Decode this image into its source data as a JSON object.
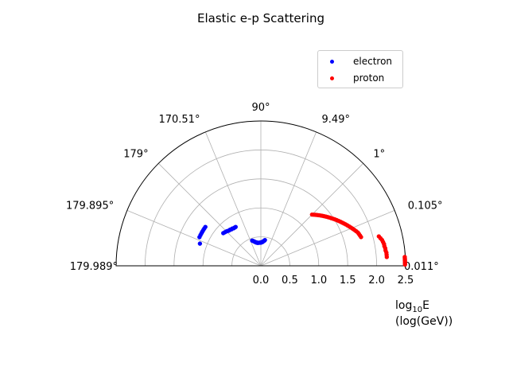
{
  "chart_data": {
    "type": "scatter",
    "projection": "polar-half",
    "title": "Elastic e-p Scattering",
    "radial_label_main": "log",
    "radial_label_sub": "10",
    "radial_label_rest": "E",
    "radial_label_line2": "(log(GeV))",
    "rlim": [
      0,
      2.5
    ],
    "radial_ticks": [
      "0.0",
      "0.5",
      "1.0",
      "1.5",
      "2.0",
      "2.5"
    ],
    "angular_ticks": [
      {
        "theta_deg": 0,
        "label": "0.011°"
      },
      {
        "theta_deg": 22.5,
        "label": "0.105°"
      },
      {
        "theta_deg": 45,
        "label": "1°"
      },
      {
        "theta_deg": 67.5,
        "label": "9.49°"
      },
      {
        "theta_deg": 90,
        "label": "90°"
      },
      {
        "theta_deg": 112.5,
        "label": "170.51°"
      },
      {
        "theta_deg": 135,
        "label": "179°"
      },
      {
        "theta_deg": 157.5,
        "label": "179.895°"
      },
      {
        "theta_deg": 180,
        "label": "179.989°"
      }
    ],
    "grid": true,
    "legend_position": "top-right",
    "series": [
      {
        "name": "electron",
        "color": "#0000ff",
        "points": [
          {
            "theta_deg": 81,
            "r": 0.45
          },
          {
            "theta_deg": 82,
            "r": 0.44
          },
          {
            "theta_deg": 83.5,
            "r": 0.43
          },
          {
            "theta_deg": 85,
            "r": 0.42
          },
          {
            "theta_deg": 86.5,
            "r": 0.41
          },
          {
            "theta_deg": 88,
            "r": 0.41
          },
          {
            "theta_deg": 89.5,
            "r": 0.4
          },
          {
            "theta_deg": 91,
            "r": 0.4
          },
          {
            "theta_deg": 92.5,
            "r": 0.4
          },
          {
            "theta_deg": 94,
            "r": 0.4
          },
          {
            "theta_deg": 95.5,
            "r": 0.4
          },
          {
            "theta_deg": 97,
            "r": 0.4
          },
          {
            "theta_deg": 98.5,
            "r": 0.4
          },
          {
            "theta_deg": 100,
            "r": 0.41
          },
          {
            "theta_deg": 101.5,
            "r": 0.41
          },
          {
            "theta_deg": 103,
            "r": 0.42
          },
          {
            "theta_deg": 104.5,
            "r": 0.43
          },
          {
            "theta_deg": 106,
            "r": 0.44
          },
          {
            "theta_deg": 107.5,
            "r": 0.45
          },
          {
            "theta_deg": 109,
            "r": 0.46
          },
          {
            "theta_deg": 123,
            "r": 0.8
          },
          {
            "theta_deg": 124.5,
            "r": 0.8
          },
          {
            "theta_deg": 126,
            "r": 0.8
          },
          {
            "theta_deg": 127.5,
            "r": 0.81
          },
          {
            "theta_deg": 129,
            "r": 0.81
          },
          {
            "theta_deg": 130.5,
            "r": 0.82
          },
          {
            "theta_deg": 132,
            "r": 0.82
          },
          {
            "theta_deg": 133.5,
            "r": 0.83
          },
          {
            "theta_deg": 135,
            "r": 0.84
          },
          {
            "theta_deg": 137,
            "r": 0.85
          },
          {
            "theta_deg": 139,
            "r": 0.86
          },
          {
            "theta_deg": 145,
            "r": 1.17
          },
          {
            "theta_deg": 146.5,
            "r": 1.17
          },
          {
            "theta_deg": 148,
            "r": 1.17
          },
          {
            "theta_deg": 149.5,
            "r": 1.17
          },
          {
            "theta_deg": 151,
            "r": 1.17
          },
          {
            "theta_deg": 153,
            "r": 1.17
          },
          {
            "theta_deg": 155,
            "r": 1.17
          },
          {
            "theta_deg": 160,
            "r": 1.12
          }
        ]
      },
      {
        "name": "proton",
        "color": "#ff0000",
        "points": [
          {
            "theta_deg": 45.0,
            "r": 1.25
          },
          {
            "theta_deg": 44.0,
            "r": 1.27
          },
          {
            "theta_deg": 43.0,
            "r": 1.29
          },
          {
            "theta_deg": 42.0,
            "r": 1.31
          },
          {
            "theta_deg": 41.0,
            "r": 1.33
          },
          {
            "theta_deg": 40.0,
            "r": 1.35
          },
          {
            "theta_deg": 39.0,
            "r": 1.37
          },
          {
            "theta_deg": 38.0,
            "r": 1.39
          },
          {
            "theta_deg": 37.0,
            "r": 1.41
          },
          {
            "theta_deg": 36.0,
            "r": 1.43
          },
          {
            "theta_deg": 35.0,
            "r": 1.45
          },
          {
            "theta_deg": 34.0,
            "r": 1.47
          },
          {
            "theta_deg": 33.0,
            "r": 1.49
          },
          {
            "theta_deg": 32.0,
            "r": 1.51
          },
          {
            "theta_deg": 31.0,
            "r": 1.53
          },
          {
            "theta_deg": 30.0,
            "r": 1.55
          },
          {
            "theta_deg": 29.0,
            "r": 1.57
          },
          {
            "theta_deg": 28.0,
            "r": 1.59
          },
          {
            "theta_deg": 27.0,
            "r": 1.61
          },
          {
            "theta_deg": 26.0,
            "r": 1.63
          },
          {
            "theta_deg": 25.0,
            "r": 1.65
          },
          {
            "theta_deg": 24.0,
            "r": 1.67
          },
          {
            "theta_deg": 23.0,
            "r": 1.69
          },
          {
            "theta_deg": 22.0,
            "r": 1.71
          },
          {
            "theta_deg": 21.0,
            "r": 1.73
          },
          {
            "theta_deg": 20.0,
            "r": 1.75
          },
          {
            "theta_deg": 19.0,
            "r": 1.77
          },
          {
            "theta_deg": 18.0,
            "r": 1.78
          },
          {
            "theta_deg": 17.0,
            "r": 1.79
          },
          {
            "theta_deg": 16.0,
            "r": 1.8
          },
          {
            "theta_deg": 14.0,
            "r": 2.1
          },
          {
            "theta_deg": 13.0,
            "r": 2.12
          },
          {
            "theta_deg": 12.0,
            "r": 2.14
          },
          {
            "theta_deg": 11.0,
            "r": 2.15
          },
          {
            "theta_deg": 10.0,
            "r": 2.16
          },
          {
            "theta_deg": 9.0,
            "r": 2.16
          },
          {
            "theta_deg": 8.0,
            "r": 2.17
          },
          {
            "theta_deg": 7.0,
            "r": 2.17
          },
          {
            "theta_deg": 6.0,
            "r": 2.18
          },
          {
            "theta_deg": 5.0,
            "r": 2.18
          },
          {
            "theta_deg": 4.0,
            "r": 2.18
          },
          {
            "theta_deg": 3.5,
            "r": 2.49
          },
          {
            "theta_deg": 3.0,
            "r": 2.49
          },
          {
            "theta_deg": 2.5,
            "r": 2.49
          },
          {
            "theta_deg": 2.0,
            "r": 2.49
          },
          {
            "theta_deg": 1.5,
            "r": 2.49
          },
          {
            "theta_deg": 1.0,
            "r": 2.49
          },
          {
            "theta_deg": 0.5,
            "r": 2.49
          }
        ]
      }
    ]
  }
}
